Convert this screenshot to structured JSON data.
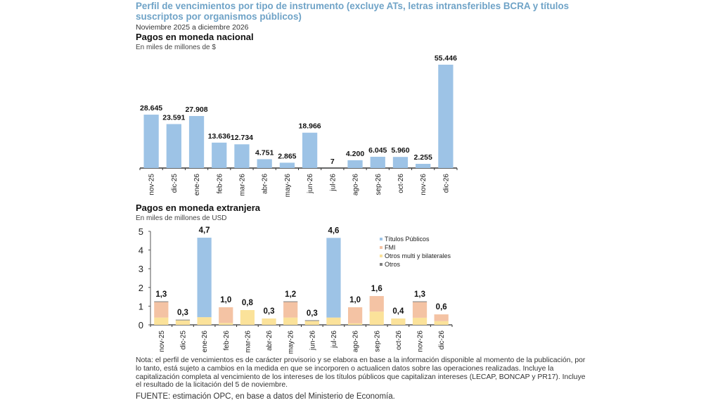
{
  "header": {
    "title": "Perfil de vencimientos por tipo de instrumento (excluye ATs, letras intransferibles BCRA y títulos suscriptos por organismos públicos)",
    "subtitle": "Noviembre 2025 a diciembre 2026"
  },
  "colors": {
    "title": "#6fa3c7",
    "bar_nacional": "#9dc3e6",
    "titulos_publicos": "#9dc3e6",
    "fmi": "#f4c3a4",
    "otros_multi": "#fbe29a",
    "otros": "#7f7f7f"
  },
  "chart_data": [
    {
      "type": "bar",
      "title": "Pagos en moneda nacional",
      "ylabel": "En miles de millones de $",
      "xlabel": "",
      "categories": [
        "nov-25",
        "dic-25",
        "ene-26",
        "feb-26",
        "mar-26",
        "abr-26",
        "may-26",
        "jun-26",
        "jul-26",
        "ago-26",
        "sep-26",
        "oct-26",
        "nov-26",
        "dic-26"
      ],
      "values": [
        28.645,
        23.591,
        27.908,
        13.636,
        12.734,
        4.751,
        2.865,
        18.966,
        0.007,
        4.2,
        6.045,
        5.96,
        2.255,
        55.446
      ],
      "data_labels": [
        "28.645",
        "23.591",
        "27.908",
        "13.636",
        "12.734",
        "4.751",
        "2.865",
        "18.966",
        "7",
        "4.200",
        "6.045",
        "5.960",
        "2.255",
        "55.446"
      ],
      "ylim": [
        0,
        60
      ],
      "y_axis_visible": false,
      "grid": false
    },
    {
      "type": "bar",
      "stacked": true,
      "title": "Pagos en moneda extranjera",
      "ylabel": "En miles de millones de USD",
      "xlabel": "",
      "categories": [
        "nov-25",
        "dic-25",
        "ene-26",
        "feb-26",
        "mar-26",
        "abr-26",
        "may-26",
        "jun-26",
        "jul-26",
        "ago-26",
        "sep-26",
        "oct-26",
        "nov-26",
        "dic-26"
      ],
      "series": [
        {
          "name": "Otros multi y bilaterales",
          "color_key": "otros_multi",
          "values": [
            0.39,
            0.24,
            0.41,
            0.1,
            0.79,
            0.34,
            0.39,
            0.21,
            0.39,
            0.08,
            0.71,
            0.34,
            0.38,
            0.2
          ]
        },
        {
          "name": "FMI",
          "color_key": "fmi",
          "values": [
            0.83,
            0.0,
            0.0,
            0.84,
            0.0,
            0.0,
            0.83,
            0.0,
            0.0,
            0.86,
            0.83,
            0.0,
            0.84,
            0.36
          ]
        },
        {
          "name": "Títulos Públicos",
          "color_key": "titulos_publicos",
          "values": [
            0.0,
            0.0,
            4.25,
            0.0,
            0.0,
            0.0,
            0.0,
            0.0,
            4.26,
            0.0,
            0.0,
            0.0,
            0.0,
            0.0
          ]
        },
        {
          "name": "Otros",
          "color_key": "otros",
          "values": [
            0.02,
            0.02,
            0.0,
            0.0,
            0.0,
            0.0,
            0.02,
            0.02,
            0.0,
            0.0,
            0.0,
            0.0,
            0.02,
            0.0
          ]
        }
      ],
      "totals_labels": [
        "1,3",
        "0,3",
        "4,7",
        "1,0",
        "0,8",
        "0,3",
        "1,2",
        "0,3",
        "4,6",
        "1,0",
        "1,6",
        "0,4",
        "1,3",
        "0,6"
      ],
      "legend": {
        "position": "top-right",
        "entries": [
          "Títulos Públicos",
          "FMI",
          "Otros multi y bilaterales",
          "Otros"
        ],
        "color_keys": [
          "titulos_publicos",
          "fmi",
          "otros_multi",
          "otros"
        ]
      },
      "yticks": [
        "0",
        "1",
        "2",
        "3",
        "4",
        "5"
      ],
      "ylim": [
        0,
        5
      ],
      "grid": false
    }
  ],
  "footer": {
    "note": "Nota: el perfil de vencimientos es de carácter provisorio y se elabora en base a la información disponible al momento de la publicación, por lo tanto, está sujeto a cambios en la medida en que se incorporen o actualicen datos sobre las operaciones realizadas. Incluye la capitalización completa al vencimiento de los intereses de los títulos públicos que capitalizan intereses (LECAP, BONCAP y PR17). Incluye el resultado de la licitación del 5 de noviembre.",
    "source": "FUENTE: estimación OPC, en base a datos del Ministerio de Economía."
  }
}
